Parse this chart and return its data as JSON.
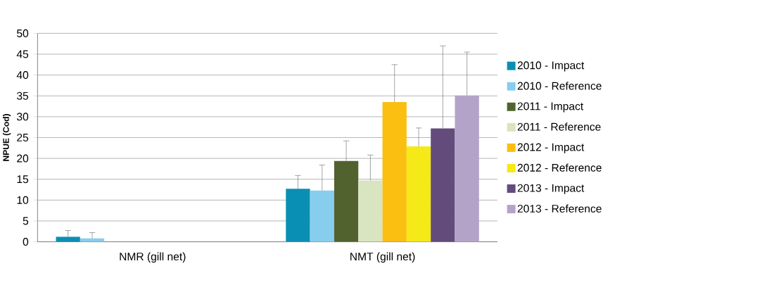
{
  "chart_data": {
    "type": "bar",
    "ylabel": "NPUE (Cod)",
    "categories": [
      "NMR (gill net)",
      "NMT (gill net)"
    ],
    "series": [
      {
        "name": "2010 - Impact",
        "color": "#0a8fb4",
        "values": [
          1.2,
          12.7
        ],
        "errors": [
          1.5,
          3.2
        ]
      },
      {
        "name": "2010 - Reference",
        "color": "#87ceee",
        "values": [
          0.8,
          12.3
        ],
        "errors": [
          1.4,
          6.1
        ]
      },
      {
        "name": "2011 - Impact",
        "color": "#52622e",
        "values": [
          null,
          19.4
        ],
        "errors": [
          null,
          4.8
        ]
      },
      {
        "name": "2011 - Reference",
        "color": "#d9e4c0",
        "values": [
          null,
          14.7
        ],
        "errors": [
          null,
          6.1
        ]
      },
      {
        "name": "2012 - Impact",
        "color": "#fbbf12",
        "values": [
          null,
          33.5
        ],
        "errors": [
          null,
          9.0
        ]
      },
      {
        "name": "2012 - Reference",
        "color": "#f5e917",
        "values": [
          null,
          22.9
        ],
        "errors": [
          null,
          4.4
        ]
      },
      {
        "name": "2013 - Impact",
        "color": "#634b7c",
        "values": [
          null,
          27.2
        ],
        "errors": [
          null,
          19.8
        ]
      },
      {
        "name": "2013 - Reference",
        "color": "#b4a3c8",
        "values": [
          null,
          35.1
        ],
        "errors": [
          null,
          10.4
        ]
      }
    ],
    "ylim": [
      0,
      50
    ],
    "yticks": [
      0,
      5,
      10,
      15,
      20,
      25,
      30,
      35,
      40,
      45,
      50
    ],
    "grid": "y",
    "legend": "right"
  }
}
